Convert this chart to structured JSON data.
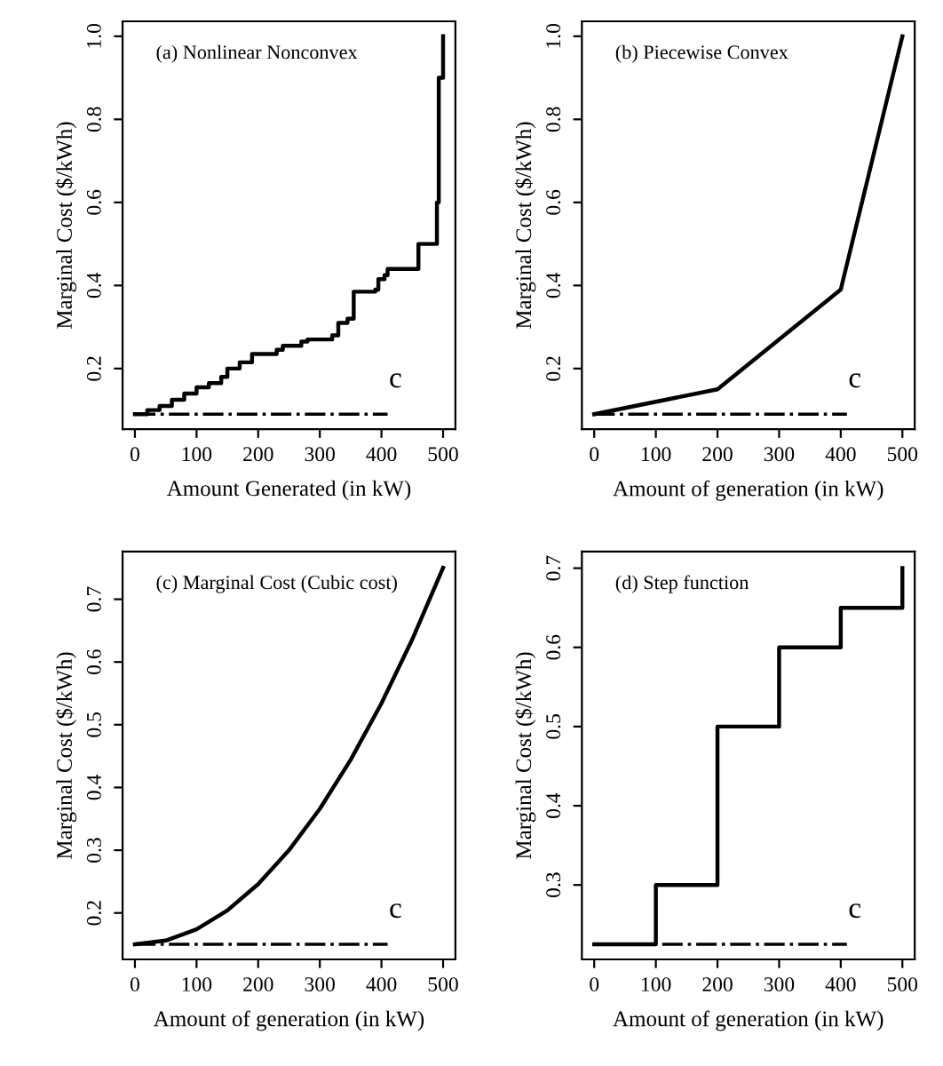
{
  "chart_data": [
    {
      "type": "step",
      "title": "(a) Nonlinear Nonconvex",
      "xlabel": "Amount Generated (in kW)",
      "ylabel": "Marginal Cost ($/kWh)",
      "xlim": [
        -20,
        520
      ],
      "ylim": [
        0.054,
        1.036
      ],
      "xticks": [
        0,
        100,
        200,
        300,
        400,
        500
      ],
      "yticks": [
        0.2,
        0.4,
        0.6,
        0.8,
        {
          "value": 1,
          "label": "1.0"
        }
      ],
      "grid": false,
      "series": [
        {
          "color": "#000000",
          "line_style": "solid",
          "x": [
            0,
            20,
            40,
            60,
            80,
            100,
            120,
            140,
            150,
            170,
            190,
            230,
            240,
            270,
            280,
            320,
            330,
            345,
            355,
            390,
            395,
            405,
            410,
            460,
            490,
            493,
            500
          ],
          "values": [
            0.09,
            0.1,
            0.11,
            0.125,
            0.14,
            0.155,
            0.165,
            0.18,
            0.2,
            0.215,
            0.235,
            0.245,
            0.255,
            0.265,
            0.27,
            0.28,
            0.31,
            0.32,
            0.385,
            0.39,
            0.415,
            0.425,
            0.44,
            0.5,
            0.6,
            0.9,
            1.0
          ]
        },
        {
          "type": "line",
          "color": "#000000",
          "line_style": "dashdot",
          "x": [
            0,
            410
          ],
          "values": [
            0.09,
            0.09
          ]
        }
      ],
      "annotations": [
        "c"
      ]
    },
    {
      "type": "line",
      "title": "(b) Piecewise Convex",
      "xlabel": "Amount of generation (in kW)",
      "ylabel": "Marginal Cost ($/kWh)",
      "xlim": [
        -20,
        520
      ],
      "ylim": [
        0.054,
        1.036
      ],
      "xticks": [
        0,
        100,
        200,
        300,
        400,
        500
      ],
      "yticks": [
        0.2,
        0.4,
        0.6,
        0.8,
        {
          "value": 1,
          "label": "1.0"
        }
      ],
      "grid": false,
      "series": [
        {
          "color": "#000000",
          "line_style": "solid",
          "x": [
            0,
            200,
            400,
            500
          ],
          "values": [
            0.09,
            0.15,
            0.39,
            1.0
          ]
        },
        {
          "color": "#000000",
          "line_style": "dashdot",
          "x": [
            0,
            410
          ],
          "values": [
            0.09,
            0.09
          ]
        }
      ],
      "annotations": [
        "c"
      ]
    },
    {
      "type": "line",
      "title": "(c) Marginal Cost (Cubic cost)",
      "xlabel": "Amount of generation (in kW)",
      "ylabel": "Marginal Cost ($/kWh)",
      "xlim": [
        -20,
        520
      ],
      "ylim": [
        0.126,
        0.776
      ],
      "xticks": [
        0,
        100,
        200,
        300,
        400,
        500
      ],
      "yticks": [
        0.2,
        0.3,
        0.4,
        0.5,
        0.6,
        0.7
      ],
      "grid": false,
      "series": [
        {
          "color": "#000000",
          "line_style": "solid",
          "x": [
            0,
            50,
            100,
            150,
            200,
            250,
            300,
            350,
            400,
            450,
            500
          ],
          "values": [
            0.15,
            0.156,
            0.174,
            0.204,
            0.246,
            0.3,
            0.366,
            0.444,
            0.534,
            0.636,
            0.75
          ]
        },
        {
          "color": "#000000",
          "line_style": "dashdot",
          "x": [
            0,
            410
          ],
          "values": [
            0.15,
            0.15
          ]
        }
      ],
      "annotations": [
        "c"
      ]
    },
    {
      "type": "step",
      "title": "(d) Step function",
      "xlabel": "Amount of generation (in kW)",
      "ylabel": "Marginal Cost ($/kWh)",
      "xlim": [
        -20,
        520
      ],
      "ylim": [
        0.206,
        0.721
      ],
      "xticks": [
        0,
        100,
        200,
        300,
        400,
        500
      ],
      "yticks": [
        0.3,
        0.4,
        0.5,
        0.6,
        0.7
      ],
      "grid": false,
      "series": [
        {
          "color": "#000000",
          "line_style": "solid",
          "x": [
            0,
            100,
            200,
            300,
            400,
            500
          ],
          "values": [
            0.225,
            0.3,
            0.5,
            0.6,
            0.65,
            0.7
          ]
        },
        {
          "type": "line",
          "color": "#000000",
          "line_style": "dashdot",
          "x": [
            0,
            410
          ],
          "values": [
            0.225,
            0.225
          ]
        }
      ],
      "annotations": [
        "c"
      ]
    }
  ]
}
